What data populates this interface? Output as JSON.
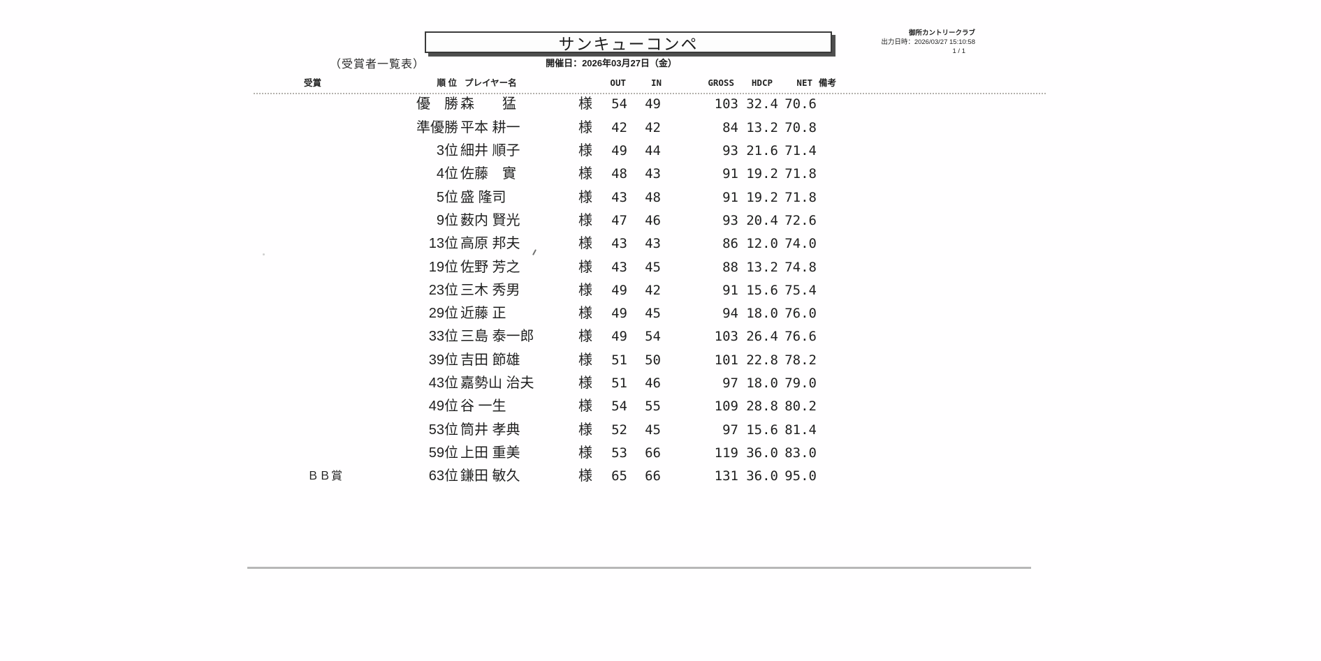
{
  "page": {
    "doc_type_label": "（受賞者一覧表）",
    "title": "サンキューコンペ",
    "event_date": "開催日：2026年03月27日（金）",
    "club_name": "御所カントリークラブ",
    "print_datetime": "出力日時：2026/03/27 15:10:58",
    "page_indicator": "1 / 1"
  },
  "table": {
    "headers": {
      "award": "受賞",
      "rank": "順 位",
      "player": "プレイヤー名",
      "out": "OUT",
      "in": "IN",
      "gross": "GROSS",
      "hdcp": "HDCP",
      "net": "NET",
      "note": "備考"
    },
    "honorific": "様",
    "rows": [
      {
        "award": "",
        "rank": "優　勝",
        "name": "森　　猛",
        "out": "54",
        "in": "49",
        "gross": "103",
        "hdcp": "32.4",
        "net": "70.6"
      },
      {
        "award": "",
        "rank": "準優勝",
        "name": "平本 耕一",
        "out": "42",
        "in": "42",
        "gross": "84",
        "hdcp": "13.2",
        "net": "70.8"
      },
      {
        "award": "",
        "rank": "3位",
        "name": "細井 順子",
        "out": "49",
        "in": "44",
        "gross": "93",
        "hdcp": "21.6",
        "net": "71.4"
      },
      {
        "award": "",
        "rank": "4位",
        "name": "佐藤　實",
        "out": "48",
        "in": "43",
        "gross": "91",
        "hdcp": "19.2",
        "net": "71.8"
      },
      {
        "award": "",
        "rank": "5位",
        "name": "盛 隆司",
        "out": "43",
        "in": "48",
        "gross": "91",
        "hdcp": "19.2",
        "net": "71.8"
      },
      {
        "award": "",
        "rank": "9位",
        "name": "薮内 賢光",
        "out": "47",
        "in": "46",
        "gross": "93",
        "hdcp": "20.4",
        "net": "72.6"
      },
      {
        "award": "",
        "rank": "13位",
        "name": "高原 邦夫",
        "out": "43",
        "in": "43",
        "gross": "86",
        "hdcp": "12.0",
        "net": "74.0"
      },
      {
        "award": "",
        "rank": "19位",
        "name": "佐野 芳之",
        "out": "43",
        "in": "45",
        "gross": "88",
        "hdcp": "13.2",
        "net": "74.8"
      },
      {
        "award": "",
        "rank": "23位",
        "name": "三木 秀男",
        "out": "49",
        "in": "42",
        "gross": "91",
        "hdcp": "15.6",
        "net": "75.4"
      },
      {
        "award": "",
        "rank": "29位",
        "name": "近藤 正",
        "out": "49",
        "in": "45",
        "gross": "94",
        "hdcp": "18.0",
        "net": "76.0"
      },
      {
        "award": "",
        "rank": "33位",
        "name": "三島 泰一郎",
        "out": "49",
        "in": "54",
        "gross": "103",
        "hdcp": "26.4",
        "net": "76.6"
      },
      {
        "award": "",
        "rank": "39位",
        "name": "吉田 節雄",
        "out": "51",
        "in": "50",
        "gross": "101",
        "hdcp": "22.8",
        "net": "78.2"
      },
      {
        "award": "",
        "rank": "43位",
        "name": "嘉勢山 治夫",
        "out": "51",
        "in": "46",
        "gross": "97",
        "hdcp": "18.0",
        "net": "79.0"
      },
      {
        "award": "",
        "rank": "49位",
        "name": "谷 一生",
        "out": "54",
        "in": "55",
        "gross": "109",
        "hdcp": "28.8",
        "net": "80.2"
      },
      {
        "award": "",
        "rank": "53位",
        "name": "筒井 孝典",
        "out": "52",
        "in": "45",
        "gross": "97",
        "hdcp": "15.6",
        "net": "81.4"
      },
      {
        "award": "",
        "rank": "59位",
        "name": "上田 重美",
        "out": "53",
        "in": "66",
        "gross": "119",
        "hdcp": "36.0",
        "net": "83.0"
      },
      {
        "award": "ＢＢ賞",
        "rank": "63位",
        "name": "鎌田 敏久",
        "out": "65",
        "in": "66",
        "gross": "131",
        "hdcp": "36.0",
        "net": "95.0"
      }
    ]
  },
  "layout": {
    "row_top_start": 133.4,
    "row_pitch": 33.3
  }
}
